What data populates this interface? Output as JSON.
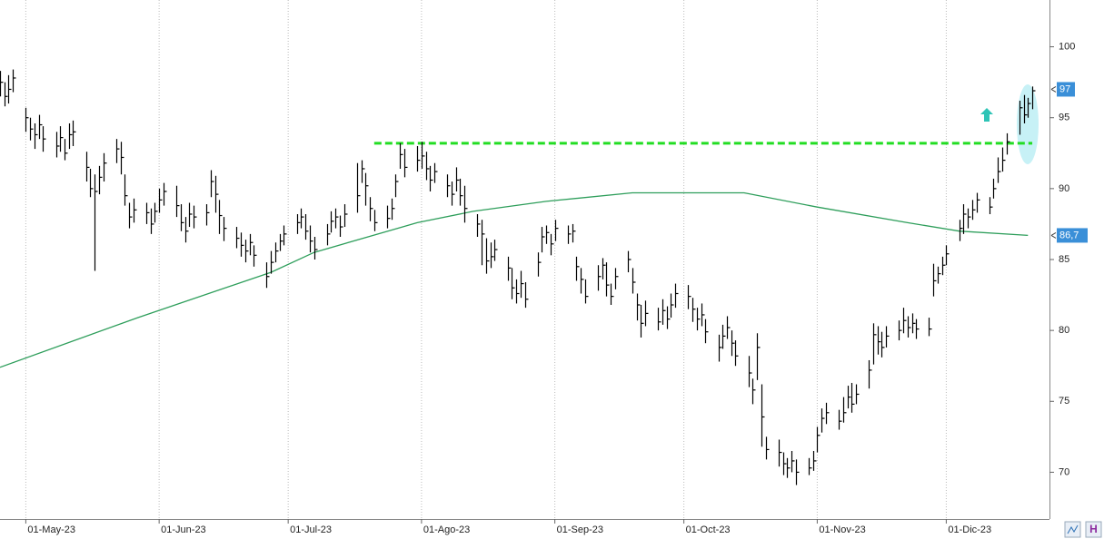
{
  "chart_data": {
    "type": "ohlc",
    "color": "#000000",
    "x": [
      "2023-04-25",
      "2023-04-26",
      "2023-04-27",
      "2023-04-28",
      "2023-05-01",
      "2023-05-02",
      "2023-05-03",
      "2023-05-04",
      "2023-05-05",
      "2023-05-08",
      "2023-05-09",
      "2023-05-10",
      "2023-05-11",
      "2023-05-12",
      "2023-05-15",
      "2023-05-16",
      "2023-05-17",
      "2023-05-18",
      "2023-05-19",
      "2023-05-22",
      "2023-05-23",
      "2023-05-24",
      "2023-05-25",
      "2023-05-26",
      "2023-05-29",
      "2023-05-30",
      "2023-05-31",
      "2023-06-01",
      "2023-06-02",
      "2023-06-05",
      "2023-06-06",
      "2023-06-07",
      "2023-06-08",
      "2023-06-09",
      "2023-06-12",
      "2023-06-13",
      "2023-06-14",
      "2023-06-15",
      "2023-06-16",
      "2023-06-19",
      "2023-06-20",
      "2023-06-21",
      "2023-06-22",
      "2023-06-23",
      "2023-06-26",
      "2023-06-27",
      "2023-06-28",
      "2023-06-29",
      "2023-06-30",
      "2023-07-03",
      "2023-07-04",
      "2023-07-05",
      "2023-07-06",
      "2023-07-07",
      "2023-07-10",
      "2023-07-11",
      "2023-07-12",
      "2023-07-13",
      "2023-07-14",
      "2023-07-17",
      "2023-07-18",
      "2023-07-19",
      "2023-07-20",
      "2023-07-21",
      "2023-07-24",
      "2023-07-25",
      "2023-07-26",
      "2023-07-27",
      "2023-07-28",
      "2023-07-31",
      "2023-08-01",
      "2023-08-02",
      "2023-08-03",
      "2023-08-04",
      "2023-08-07",
      "2023-08-08",
      "2023-08-09",
      "2023-08-10",
      "2023-08-11",
      "2023-08-14",
      "2023-08-15",
      "2023-08-16",
      "2023-08-17",
      "2023-08-18",
      "2023-08-21",
      "2023-08-22",
      "2023-08-23",
      "2023-08-24",
      "2023-08-25",
      "2023-08-28",
      "2023-08-29",
      "2023-08-30",
      "2023-08-31",
      "2023-09-01",
      "2023-09-04",
      "2023-09-05",
      "2023-09-06",
      "2023-09-07",
      "2023-09-08",
      "2023-09-11",
      "2023-09-12",
      "2023-09-13",
      "2023-09-14",
      "2023-09-15",
      "2023-09-18",
      "2023-09-19",
      "2023-09-20",
      "2023-09-21",
      "2023-09-22",
      "2023-09-25",
      "2023-09-26",
      "2023-09-27",
      "2023-09-28",
      "2023-09-29",
      "2023-10-02",
      "2023-10-03",
      "2023-10-04",
      "2023-10-05",
      "2023-10-06",
      "2023-10-09",
      "2023-10-10",
      "2023-10-11",
      "2023-10-12",
      "2023-10-13",
      "2023-10-16",
      "2023-10-17",
      "2023-10-18",
      "2023-10-19",
      "2023-10-20",
      "2023-10-23",
      "2023-10-24",
      "2023-10-25",
      "2023-10-26",
      "2023-10-27",
      "2023-10-30",
      "2023-10-31",
      "2023-11-01",
      "2023-11-02",
      "2023-11-03",
      "2023-11-06",
      "2023-11-07",
      "2023-11-08",
      "2023-11-09",
      "2023-11-10",
      "2023-11-13",
      "2023-11-14",
      "2023-11-15",
      "2023-11-16",
      "2023-11-17",
      "2023-11-20",
      "2023-11-21",
      "2023-11-22",
      "2023-11-23",
      "2023-11-24",
      "2023-11-27",
      "2023-11-28",
      "2023-11-29",
      "2023-11-30",
      "2023-12-01",
      "2023-12-04",
      "2023-12-05",
      "2023-12-06",
      "2023-12-07",
      "2023-12-08",
      "2023-12-11",
      "2023-12-12",
      "2023-12-13",
      "2023-12-14",
      "2023-12-15",
      "2023-12-18",
      "2023-12-19",
      "2023-12-20",
      "2023-12-21"
    ],
    "high": [
      98.3,
      97.5,
      98,
      98.4,
      95.7,
      95,
      94.6,
      95.2,
      94.4,
      94,
      94.4,
      93.5,
      94.6,
      94.8,
      92.6,
      91.4,
      91,
      91.6,
      92.5,
      93.5,
      93.3,
      91,
      89,
      89.3,
      89,
      88.6,
      89,
      90,
      90.4,
      90.2,
      88.9,
      88,
      89,
      88.8,
      88.9,
      91.3,
      90.9,
      89.2,
      88,
      87.3,
      86.9,
      86.4,
      86.8,
      86,
      84.8,
      85.6,
      86.2,
      86.8,
      87.4,
      88.2,
      88.6,
      88.2,
      87.4,
      86.6,
      87.5,
      88.4,
      88.6,
      88.1,
      88.9,
      91.8,
      92,
      91.1,
      89.4,
      88.5,
      88.8,
      89.3,
      91,
      93.2,
      92.8,
      93,
      93.3,
      92.6,
      91.6,
      91.8,
      91,
      90.5,
      91.5,
      90.7,
      90.2,
      88.2,
      87.8,
      86.5,
      86.2,
      86.4,
      85.2,
      84.4,
      83.6,
      84.2,
      83.4,
      85.5,
      87.3,
      87.4,
      86.8,
      87.8,
      87.4,
      87.5,
      85.2,
      84.4,
      83.6,
      84.6,
      85.1,
      84.8,
      83.3,
      84.4,
      85.6,
      84.4,
      82.6,
      81.8,
      82.1,
      81.6,
      82.2,
      81.7,
      82.6,
      83.3,
      83.2,
      82.3,
      81.6,
      81.9,
      80.8,
      79.7,
      80.4,
      81,
      80,
      79.3,
      78.2,
      76.6,
      79.8,
      76.2,
      72.5,
      72.3,
      71.4,
      71,
      71.5,
      70.9,
      71,
      71.5,
      73.2,
      74.5,
      74.9,
      74.4,
      75.3,
      76.1,
      76.3,
      76.2,
      77.9,
      80.5,
      80.3,
      79.9,
      80.3,
      80.7,
      81.6,
      81,
      81.2,
      80.8,
      80.9,
      84.7,
      84.5,
      85.2,
      86,
      87.8,
      88.9,
      88.6,
      89.2,
      89.7,
      89.4,
      90.7,
      92.2,
      92.9,
      93.9,
      96.2,
      96.6,
      96.4,
      97.2
    ],
    "low": [
      96.5,
      95.8,
      96,
      96.8,
      94,
      93.4,
      92.8,
      93.5,
      92.6,
      92.2,
      92.6,
      92,
      92.8,
      93,
      90.5,
      89.4,
      84.2,
      89.6,
      90.5,
      91.8,
      91,
      88.8,
      87.2,
      87.6,
      87.5,
      86.8,
      87.6,
      88.3,
      88.8,
      88,
      87,
      86.2,
      87.3,
      87.2,
      87.4,
      89.4,
      88.3,
      86.8,
      86.3,
      85.8,
      85.2,
      84.8,
      85.3,
      84.5,
      83,
      84,
      84.8,
      85.6,
      86,
      86.8,
      87.2,
      86.4,
      85.5,
      85,
      86,
      86.9,
      87.2,
      86.6,
      87.3,
      88.3,
      90.4,
      88.8,
      87.7,
      87,
      87.2,
      87.8,
      89.4,
      91.4,
      90.8,
      91.2,
      91.4,
      90.6,
      89.8,
      90.4,
      89.4,
      88.8,
      89.8,
      88.8,
      87.6,
      86.6,
      84.6,
      84,
      84.4,
      84.9,
      83.5,
      82.2,
      81.9,
      82.3,
      81.6,
      83.8,
      85.5,
      86.1,
      85.3,
      86.3,
      86.1,
      86.2,
      83.5,
      82.6,
      81.9,
      82.8,
      83.6,
      82.4,
      81.8,
      82.9,
      84.1,
      82.6,
      80.7,
      79.5,
      80.3,
      80,
      80.4,
      80.1,
      80.9,
      81.6,
      81.5,
      80.6,
      80,
      80.3,
      79.1,
      77.8,
      78.7,
      79.4,
      78.2,
      77.5,
      76,
      74.8,
      76.5,
      71.8,
      70.9,
      70.4,
      69.8,
      69.6,
      70,
      69.1,
      69.8,
      70.1,
      71.4,
      72.8,
      73.4,
      73,
      73.5,
      74.5,
      74.2,
      74.8,
      75.9,
      77.6,
      78.3,
      78.1,
      78.8,
      79.3,
      79.8,
      79.5,
      79.8,
      79.4,
      79.6,
      82.4,
      83.3,
      83.9,
      84.6,
      86.3,
      86.8,
      87.2,
      87.8,
      88.3,
      88.2,
      89.3,
      90.4,
      91.2,
      92.4,
      93.8,
      94.6,
      95,
      95.6
    ],
    "close": [
      97.5,
      96.5,
      97,
      97.8,
      95,
      94.2,
      93.8,
      94.5,
      93.5,
      93,
      93.6,
      92.5,
      93.8,
      94,
      91.5,
      90,
      89.8,
      90.8,
      91.8,
      92.8,
      92.2,
      89.5,
      88,
      88.5,
      88.3,
      87.5,
      88.4,
      89.2,
      89.8,
      88.8,
      87.6,
      87,
      88.2,
      88,
      88.3,
      90.5,
      89.6,
      88.1,
      87.2,
      86.5,
      86,
      85.6,
      86.2,
      85.3,
      83.8,
      84.8,
      85.6,
      86.3,
      86.8,
      87.6,
      88,
      87,
      86.3,
      85.7,
      86.8,
      87.7,
      88,
      87.3,
      88.2,
      89.5,
      91.4,
      90.2,
      88.6,
      87.6,
      87.9,
      88.6,
      90.5,
      92.4,
      91.5,
      92,
      92.3,
      91.4,
      90.6,
      91.2,
      90.2,
      89.6,
      90.6,
      89.5,
      88.6,
      87.5,
      86.8,
      84.9,
      85.2,
      85.7,
      84.4,
      83,
      82.6,
      83.3,
      82.2,
      84.8,
      86.6,
      86.9,
      86.1,
      87.2,
      86.8,
      87,
      84.5,
      83.6,
      82.4,
      83.8,
      84.6,
      83.2,
      82.4,
      83.8,
      85,
      83.4,
      81.8,
      80.5,
      81.2,
      80.6,
      81.4,
      80.8,
      81.8,
      82.6,
      82.4,
      81.5,
      80.8,
      81.1,
      79.9,
      78.8,
      79.6,
      80.2,
      79.1,
      78.2,
      77,
      75.8,
      78.8,
      73.9,
      71.6,
      71.4,
      70.6,
      70.3,
      70.8,
      70,
      70.3,
      70.8,
      72.6,
      73.8,
      74.2,
      73.6,
      74.2,
      75.3,
      74.8,
      75.5,
      77.2,
      79.7,
      79.2,
      78.8,
      79.6,
      80,
      80.7,
      80.2,
      80.5,
      80.1,
      80.1,
      83.5,
      84,
      84.6,
      85.4,
      87.2,
      88.2,
      88,
      88.5,
      89.2,
      88.7,
      90,
      91.2,
      92,
      93.3,
      95.7,
      95.2,
      96,
      96.9
    ],
    "lines": [
      {
        "color": "#2e9e5b",
        "x": [
          "2023-04-25",
          "2023-05-27",
          "2023-06-27",
          "2023-07-07",
          "2023-07-31",
          "2023-08-13",
          "2023-08-30",
          "2023-09-19",
          "2023-10-15",
          "2023-11-01",
          "2023-11-22",
          "2023-12-04",
          "2023-12-20"
        ],
        "values": [
          77.4,
          80.9,
          84.1,
          85.5,
          87.6,
          88.4,
          89.1,
          89.7,
          89.7,
          88.7,
          87.6,
          87.0,
          86.7
        ]
      }
    ],
    "level_line": {
      "value": 93.2,
      "from": "2023-07-21",
      "to": "2023-12-21",
      "color": "#22dd22"
    },
    "price_labels": [
      {
        "value": 97,
        "label": "97",
        "color": "#3a8fd8"
      },
      {
        "value": 86.7,
        "label": "86,7",
        "color": "#3a8fd8"
      }
    ],
    "xlim": [
      "2023-04-25",
      "2023-12-25"
    ],
    "xticks": [
      {
        "value": "2023-05-01",
        "label": "01-May-23"
      },
      {
        "value": "2023-06-01",
        "label": "01-Jun-23"
      },
      {
        "value": "2023-07-01",
        "label": "01-Jul-23"
      },
      {
        "value": "2023-08-01",
        "label": "01-Ago-23"
      },
      {
        "value": "2023-09-01",
        "label": "01-Sep-23"
      },
      {
        "value": "2023-10-01",
        "label": "01-Oct-23"
      },
      {
        "value": "2023-11-01",
        "label": "01-Nov-23"
      },
      {
        "value": "2023-12-01",
        "label": "01-Dic-23"
      }
    ],
    "ylim": [
      66.7,
      103.3
    ],
    "yticks": [
      70,
      75,
      80,
      85,
      90,
      95,
      100
    ],
    "grid": "x"
  }
}
